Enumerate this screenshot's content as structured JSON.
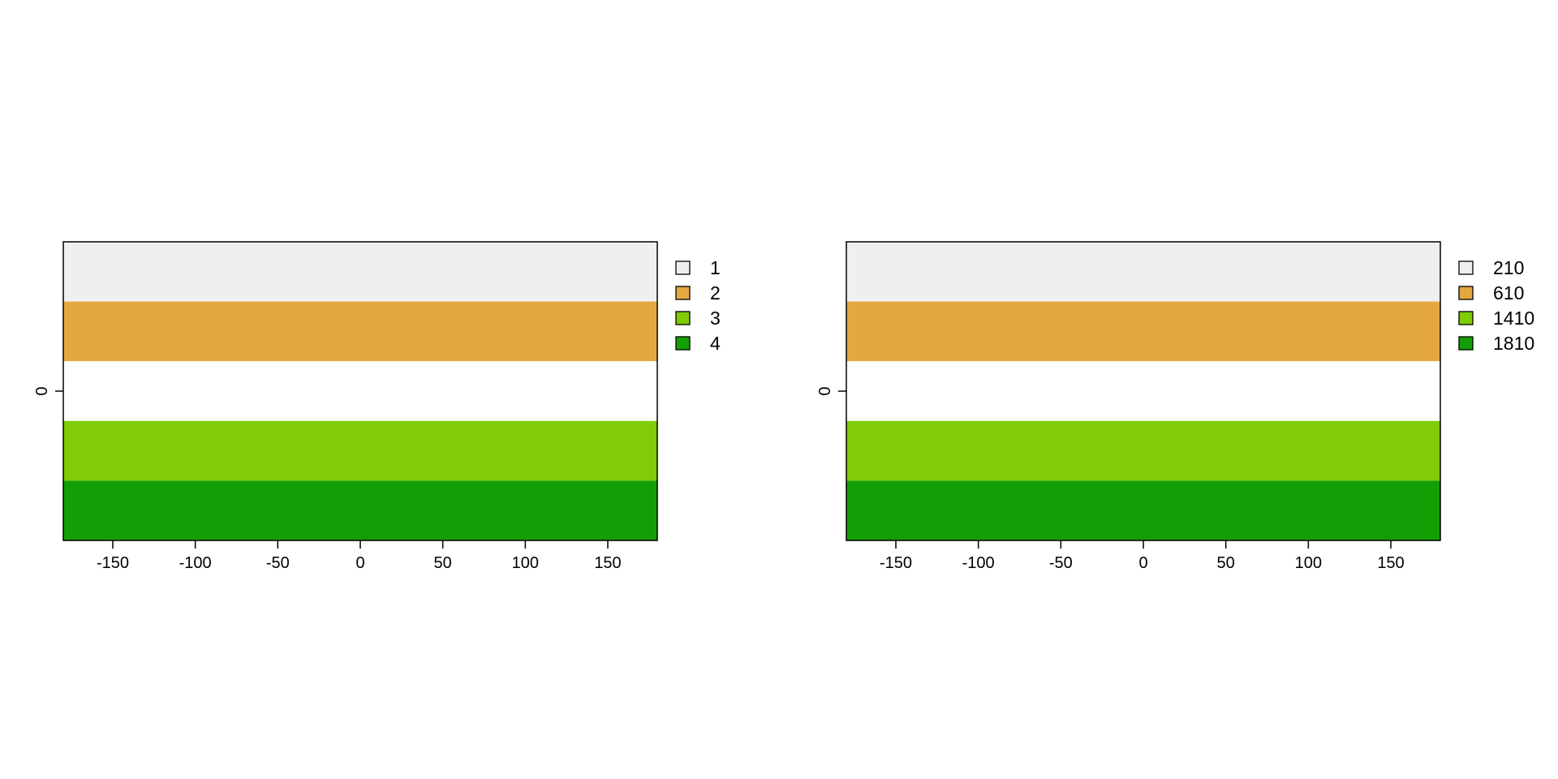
{
  "chart_data": [
    {
      "type": "heatmap",
      "title": "",
      "xlabel": "",
      "ylabel": "",
      "xlim": [
        -180,
        180
      ],
      "x_ticks": [
        "-150",
        "-100",
        "-50",
        "0",
        "50",
        "100",
        "150"
      ],
      "x_tick_values": [
        -150,
        -100,
        -50,
        0,
        50,
        100,
        150
      ],
      "y_ticks": [
        "0"
      ],
      "grid": false,
      "legend_position": "right",
      "bands": [
        {
          "category": "1",
          "color": "#efeff0"
        },
        {
          "category": "2",
          "color": "#e5a840"
        },
        {
          "category": null,
          "color": "#ffffff"
        },
        {
          "category": "3",
          "color": "#7fcc07"
        },
        {
          "category": "4",
          "color": "#149e05"
        }
      ],
      "legend": [
        {
          "label": "1",
          "color": "#efeff0"
        },
        {
          "label": "2",
          "color": "#e5a840"
        },
        {
          "label": "3",
          "color": "#7fcc07"
        },
        {
          "label": "4",
          "color": "#149e05"
        }
      ]
    },
    {
      "type": "heatmap",
      "title": "",
      "xlabel": "",
      "ylabel": "",
      "xlim": [
        -180,
        180
      ],
      "x_ticks": [
        "-150",
        "-100",
        "-50",
        "0",
        "50",
        "100",
        "150"
      ],
      "x_tick_values": [
        -150,
        -100,
        -50,
        0,
        50,
        100,
        150
      ],
      "y_ticks": [
        "0"
      ],
      "grid": false,
      "legend_position": "right",
      "bands": [
        {
          "category": "210",
          "color": "#efeff0"
        },
        {
          "category": "610",
          "color": "#e5a840"
        },
        {
          "category": null,
          "color": "#ffffff"
        },
        {
          "category": "1410",
          "color": "#7fcc07"
        },
        {
          "category": "1810",
          "color": "#149e05"
        }
      ],
      "legend": [
        {
          "label": "210",
          "color": "#efeff0"
        },
        {
          "label": "610",
          "color": "#e5a840"
        },
        {
          "label": "1410",
          "color": "#7fcc07"
        },
        {
          "label": "1810",
          "color": "#149e05"
        }
      ]
    }
  ]
}
